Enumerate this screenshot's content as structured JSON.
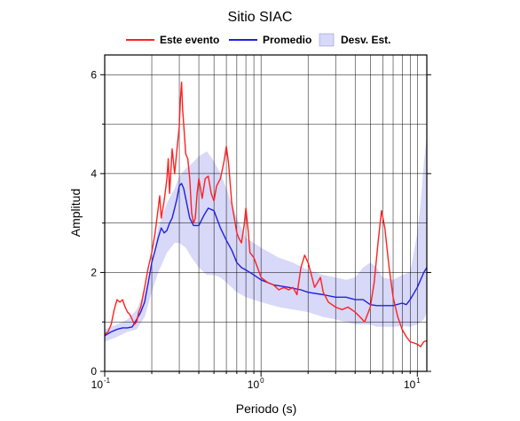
{
  "chart_data": {
    "type": "line",
    "title": "Sitio SIAC",
    "xlabel": "Periodo (s)",
    "ylabel": "Amplitud",
    "xscale": "log",
    "xlim": [
      0.1,
      11.5
    ],
    "ylim": [
      0,
      6.4
    ],
    "grid": true,
    "legend_position": "top",
    "x_tick_labels": [
      {
        "base": "10",
        "exp": "-1",
        "value": 0.1
      },
      {
        "base": "10",
        "exp": "0",
        "value": 1
      },
      {
        "base": "10",
        "exp": "1",
        "value": 10
      }
    ],
    "y_tick_labels": [
      {
        "label": "0",
        "value": 0
      },
      {
        "label": "2",
        "value": 2
      },
      {
        "label": "4",
        "value": 4
      },
      {
        "label": "6",
        "value": 6
      }
    ],
    "series": [
      {
        "name": "Este evento",
        "kind": "line",
        "color": "#ff2020",
        "points": [
          [
            0.1,
            0.75
          ],
          [
            0.105,
            0.8
          ],
          [
            0.11,
            0.95
          ],
          [
            0.115,
            1.25
          ],
          [
            0.12,
            1.45
          ],
          [
            0.125,
            1.4
          ],
          [
            0.13,
            1.45
          ],
          [
            0.135,
            1.3
          ],
          [
            0.14,
            1.2
          ],
          [
            0.145,
            1.15
          ],
          [
            0.15,
            1.05
          ],
          [
            0.155,
            0.95
          ],
          [
            0.16,
            1.0
          ],
          [
            0.165,
            1.2
          ],
          [
            0.17,
            1.3
          ],
          [
            0.175,
            1.5
          ],
          [
            0.18,
            1.7
          ],
          [
            0.19,
            2.1
          ],
          [
            0.2,
            2.4
          ],
          [
            0.21,
            2.8
          ],
          [
            0.22,
            3.3
          ],
          [
            0.225,
            3.55
          ],
          [
            0.23,
            3.1
          ],
          [
            0.24,
            3.45
          ],
          [
            0.25,
            3.9
          ],
          [
            0.255,
            4.3
          ],
          [
            0.26,
            3.6
          ],
          [
            0.27,
            4.5
          ],
          [
            0.28,
            4.0
          ],
          [
            0.29,
            4.5
          ],
          [
            0.3,
            4.95
          ],
          [
            0.305,
            5.5
          ],
          [
            0.31,
            5.85
          ],
          [
            0.315,
            5.3
          ],
          [
            0.32,
            5.0
          ],
          [
            0.33,
            4.4
          ],
          [
            0.34,
            4.3
          ],
          [
            0.35,
            3.9
          ],
          [
            0.36,
            3.2
          ],
          [
            0.37,
            3.0
          ],
          [
            0.38,
            3.1
          ],
          [
            0.39,
            3.6
          ],
          [
            0.4,
            3.9
          ],
          [
            0.42,
            3.5
          ],
          [
            0.44,
            3.9
          ],
          [
            0.46,
            3.95
          ],
          [
            0.48,
            3.6
          ],
          [
            0.5,
            3.45
          ],
          [
            0.52,
            3.75
          ],
          [
            0.55,
            3.9
          ],
          [
            0.58,
            4.25
          ],
          [
            0.6,
            4.55
          ],
          [
            0.62,
            4.2
          ],
          [
            0.65,
            3.4
          ],
          [
            0.7,
            2.8
          ],
          [
            0.72,
            2.7
          ],
          [
            0.75,
            2.6
          ],
          [
            0.78,
            2.95
          ],
          [
            0.8,
            3.3
          ],
          [
            0.83,
            2.8
          ],
          [
            0.85,
            2.4
          ],
          [
            0.9,
            2.3
          ],
          [
            0.95,
            2.1
          ],
          [
            1.0,
            1.9
          ],
          [
            1.1,
            1.8
          ],
          [
            1.2,
            1.75
          ],
          [
            1.3,
            1.65
          ],
          [
            1.4,
            1.7
          ],
          [
            1.5,
            1.65
          ],
          [
            1.6,
            1.7
          ],
          [
            1.7,
            1.55
          ],
          [
            1.8,
            2.1
          ],
          [
            1.9,
            2.35
          ],
          [
            2.0,
            2.2
          ],
          [
            2.1,
            1.95
          ],
          [
            2.2,
            1.7
          ],
          [
            2.3,
            1.8
          ],
          [
            2.4,
            1.9
          ],
          [
            2.5,
            1.6
          ],
          [
            2.7,
            1.4
          ],
          [
            3.0,
            1.3
          ],
          [
            3.3,
            1.25
          ],
          [
            3.6,
            1.3
          ],
          [
            4.0,
            1.2
          ],
          [
            4.3,
            1.1
          ],
          [
            4.6,
            1.0
          ],
          [
            5.0,
            1.3
          ],
          [
            5.3,
            1.8
          ],
          [
            5.6,
            2.6
          ],
          [
            5.9,
            3.25
          ],
          [
            6.2,
            2.9
          ],
          [
            6.6,
            2.1
          ],
          [
            7.0,
            1.5
          ],
          [
            7.5,
            1.1
          ],
          [
            8.0,
            0.85
          ],
          [
            8.5,
            0.7
          ],
          [
            9.0,
            0.6
          ],
          [
            10.0,
            0.55
          ],
          [
            10.5,
            0.5
          ],
          [
            11.0,
            0.6
          ],
          [
            11.5,
            0.62
          ]
        ]
      },
      {
        "name": "Promedio",
        "kind": "line",
        "color": "#2020e0",
        "points": [
          [
            0.1,
            0.72
          ],
          [
            0.11,
            0.8
          ],
          [
            0.12,
            0.85
          ],
          [
            0.13,
            0.88
          ],
          [
            0.14,
            0.88
          ],
          [
            0.15,
            0.9
          ],
          [
            0.16,
            1.05
          ],
          [
            0.17,
            1.2
          ],
          [
            0.18,
            1.4
          ],
          [
            0.19,
            1.8
          ],
          [
            0.2,
            2.2
          ],
          [
            0.21,
            2.45
          ],
          [
            0.22,
            2.7
          ],
          [
            0.23,
            2.9
          ],
          [
            0.24,
            2.8
          ],
          [
            0.25,
            2.85
          ],
          [
            0.26,
            3.0
          ],
          [
            0.27,
            3.1
          ],
          [
            0.28,
            3.3
          ],
          [
            0.29,
            3.5
          ],
          [
            0.3,
            3.75
          ],
          [
            0.31,
            3.8
          ],
          [
            0.32,
            3.7
          ],
          [
            0.33,
            3.5
          ],
          [
            0.35,
            3.1
          ],
          [
            0.37,
            2.95
          ],
          [
            0.4,
            2.95
          ],
          [
            0.43,
            3.15
          ],
          [
            0.46,
            3.3
          ],
          [
            0.5,
            3.25
          ],
          [
            0.55,
            2.9
          ],
          [
            0.6,
            2.65
          ],
          [
            0.65,
            2.45
          ],
          [
            0.7,
            2.2
          ],
          [
            0.75,
            2.1
          ],
          [
            0.8,
            2.05
          ],
          [
            0.9,
            1.95
          ],
          [
            1.0,
            1.85
          ],
          [
            1.2,
            1.75
          ],
          [
            1.5,
            1.7
          ],
          [
            1.8,
            1.65
          ],
          [
            2.0,
            1.6
          ],
          [
            2.5,
            1.55
          ],
          [
            3.0,
            1.5
          ],
          [
            3.5,
            1.5
          ],
          [
            4.0,
            1.45
          ],
          [
            4.5,
            1.45
          ],
          [
            5.0,
            1.35
          ],
          [
            5.5,
            1.33
          ],
          [
            6.0,
            1.33
          ],
          [
            7.0,
            1.33
          ],
          [
            8.0,
            1.38
          ],
          [
            8.5,
            1.35
          ],
          [
            9.0,
            1.45
          ],
          [
            10.0,
            1.7
          ],
          [
            11.0,
            2.0
          ],
          [
            11.5,
            2.1
          ]
        ]
      },
      {
        "name": "Desv. Est.",
        "kind": "band",
        "color": "#d8d8f8",
        "x": [
          0.1,
          0.12,
          0.14,
          0.16,
          0.18,
          0.2,
          0.22,
          0.25,
          0.28,
          0.3,
          0.33,
          0.36,
          0.4,
          0.45,
          0.5,
          0.55,
          0.6,
          0.7,
          0.8,
          1.0,
          1.3,
          1.6,
          2.0,
          2.5,
          3.0,
          3.5,
          4.0,
          4.5,
          5.0,
          5.5,
          6.0,
          7.0,
          8.0,
          9.0,
          10.0,
          10.5,
          11.0,
          11.5
        ],
        "upper": [
          0.85,
          0.95,
          1.05,
          1.25,
          1.6,
          2.2,
          2.9,
          3.4,
          3.7,
          3.95,
          4.1,
          4.2,
          4.35,
          4.45,
          4.25,
          4.0,
          3.7,
          3.1,
          2.7,
          2.5,
          2.3,
          2.2,
          2.05,
          1.95,
          1.9,
          1.85,
          1.9,
          2.1,
          2.2,
          2.1,
          1.9,
          1.85,
          1.95,
          2.0,
          2.8,
          3.4,
          4.2,
          4.8
        ],
        "lower": [
          0.6,
          0.7,
          0.8,
          0.85,
          1.1,
          1.6,
          2.0,
          2.4,
          2.6,
          2.6,
          2.5,
          2.3,
          2.1,
          1.95,
          1.95,
          1.9,
          1.8,
          1.6,
          1.5,
          1.4,
          1.3,
          1.25,
          1.2,
          1.1,
          1.05,
          1.0,
          0.95,
          0.95,
          0.95,
          0.9,
          0.9,
          0.9,
          0.92,
          0.9,
          0.95,
          1.0,
          1.05,
          1.2
        ]
      }
    ]
  }
}
